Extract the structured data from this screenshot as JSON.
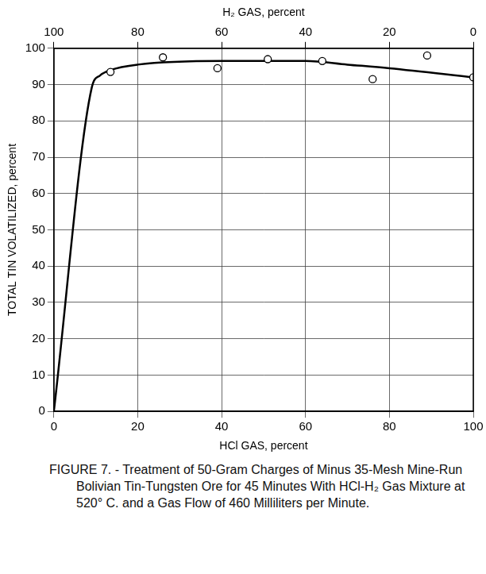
{
  "chart_data": {
    "type": "scatter",
    "title": "FIGURE 7. - Treatment of 50-Gram Charges of Minus 35-Mesh Mine-Run Bolivian Tin-Tungsten Ore for 45 Minutes With HCl-H₂ Gas Mixture at 520° C. and a Gas Flow of 460 Milliliters per Minute.",
    "xlabel": "HCl GAS, percent",
    "x2label": "H₂ GAS, percent",
    "ylabel": "TOTAL TIN VOLATILIZED, percent",
    "xlim": [
      0,
      100
    ],
    "xticks": [
      0,
      20,
      40,
      60,
      80,
      100
    ],
    "x2lim": [
      100,
      0
    ],
    "x2ticks": [
      100,
      80,
      60,
      40,
      20,
      0
    ],
    "ylim": [
      0,
      100
    ],
    "yticks": [
      0,
      10,
      20,
      30,
      40,
      50,
      60,
      70,
      80,
      90,
      100
    ],
    "grid": true,
    "series": [
      {
        "type": "scatter",
        "marker": "circle",
        "color": "#000000",
        "x": [
          13.5,
          26,
          39,
          51,
          64,
          76,
          89,
          100
        ],
        "values": [
          93.5,
          97.5,
          94.5,
          97,
          96.5,
          91.5,
          98,
          92
        ]
      },
      {
        "type": "line",
        "line_style": "solid",
        "color": "#000000",
        "x": [
          0,
          9,
          11,
          13.5,
          20,
          40,
          60,
          70,
          80,
          100
        ],
        "values": [
          0,
          89,
          92.5,
          94,
          95.5,
          96.5,
          96.5,
          95.5,
          94.5,
          92
        ]
      }
    ]
  }
}
